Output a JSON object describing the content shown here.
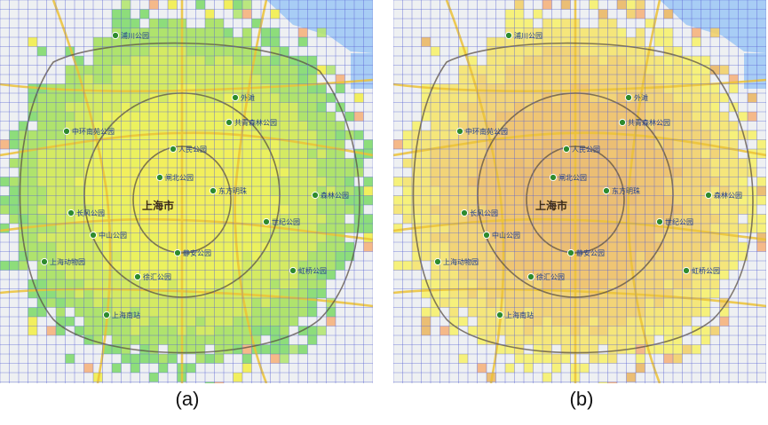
{
  "panels": [
    {
      "id": "a",
      "caption": "(a)",
      "heatmap_palette": {
        "outer": "#7fd96a",
        "ring": "#a6e05a",
        "middle": "#d0e84e",
        "inner": "#eaf04a",
        "core": "#f2ee48",
        "sparse": [
          "#7fd96a",
          "#b3e56e",
          "#f6b07a",
          "#f2ee48"
        ]
      }
    },
    {
      "id": "b",
      "caption": "(b)",
      "heatmap_palette": {
        "outer": "#f7f06a",
        "ring": "#f6e46a",
        "middle": "#f3cf66",
        "inner": "#efbe62",
        "core": "#eab662",
        "sparse": [
          "#f7f06a",
          "#f3cf66",
          "#f6b07a",
          "#eab662"
        ]
      }
    }
  ],
  "map": {
    "city_label": "上海市",
    "water_color": "#a8cdf5",
    "grid_color": "#5a63d6",
    "road_color": "#ecc235",
    "ring_road_color": "#5a4f42",
    "poi_color": "#2e8b2e",
    "poi_labels": [
      "浦川公园",
      "中环南苑公园",
      "共青森林公园",
      "人民公园",
      "长风公园",
      "世纪公园",
      "中山公园",
      "徐汇公园",
      "外滩",
      "东方明珠",
      "上海南站",
      "虹桥公园",
      "静安公园",
      "闸北公园",
      "上海动物园",
      "森林公园"
    ]
  }
}
